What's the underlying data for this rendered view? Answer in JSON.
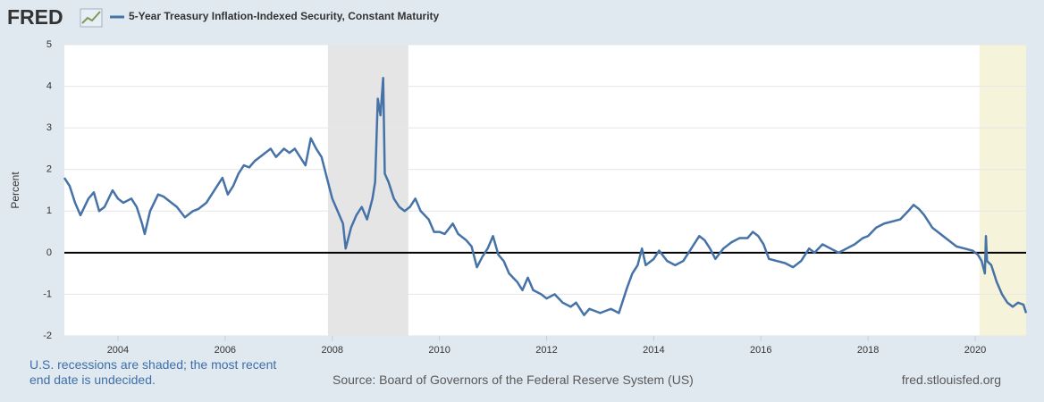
{
  "logo": "FRED",
  "chart_data": {
    "type": "line",
    "y_label": "Percent",
    "x": [
      2003.0,
      2003.1,
      2003.2,
      2003.3,
      2003.45,
      2003.55,
      2003.65,
      2003.75,
      2003.9,
      2004.0,
      2004.1,
      2004.25,
      2004.35,
      2004.45,
      2004.5,
      2004.6,
      2004.75,
      2004.85,
      2005.0,
      2005.1,
      2005.25,
      2005.4,
      2005.5,
      2005.65,
      2005.75,
      2005.85,
      2005.95,
      2006.05,
      2006.15,
      2006.25,
      2006.35,
      2006.45,
      2006.55,
      2006.65,
      2006.75,
      2006.85,
      2006.95,
      2007.1,
      2007.2,
      2007.3,
      2007.4,
      2007.5,
      2007.6,
      2007.7,
      2007.8,
      2007.9,
      2008.0,
      2008.1,
      2008.2,
      2008.25,
      2008.35,
      2008.45,
      2008.55,
      2008.65,
      2008.75,
      2008.8,
      2008.85,
      2008.9,
      2008.95,
      2008.98,
      2009.05,
      2009.15,
      2009.25,
      2009.35,
      2009.45,
      2009.55,
      2009.65,
      2009.8,
      2009.9,
      2010.0,
      2010.1,
      2010.25,
      2010.35,
      2010.5,
      2010.6,
      2010.7,
      2010.8,
      2010.9,
      2011.0,
      2011.1,
      2011.2,
      2011.3,
      2011.45,
      2011.55,
      2011.65,
      2011.75,
      2011.9,
      2012.0,
      2012.15,
      2012.3,
      2012.45,
      2012.55,
      2012.7,
      2012.8,
      2013.0,
      2013.2,
      2013.35,
      2013.5,
      2013.6,
      2013.7,
      2013.78,
      2013.85,
      2014.0,
      2014.1,
      2014.25,
      2014.4,
      2014.55,
      2014.7,
      2014.85,
      2014.95,
      2015.05,
      2015.15,
      2015.3,
      2015.45,
      2015.6,
      2015.75,
      2015.85,
      2015.95,
      2016.05,
      2016.15,
      2016.3,
      2016.45,
      2016.6,
      2016.75,
      2016.9,
      2017.0,
      2017.15,
      2017.3,
      2017.45,
      2017.6,
      2017.75,
      2017.9,
      2018.0,
      2018.15,
      2018.3,
      2018.45,
      2018.6,
      2018.75,
      2018.85,
      2018.95,
      2019.05,
      2019.2,
      2019.35,
      2019.5,
      2019.65,
      2019.8,
      2019.95,
      2020.05,
      2020.12,
      2020.18,
      2020.2,
      2020.22,
      2020.3,
      2020.4,
      2020.5,
      2020.6,
      2020.7,
      2020.8,
      2020.9,
      2020.95
    ],
    "series": [
      {
        "name": "5-Year Treasury Inflation-Indexed Security, Constant Maturity",
        "color": "#4572a7",
        "values": [
          1.8,
          1.6,
          1.2,
          0.9,
          1.3,
          1.45,
          1.0,
          1.1,
          1.5,
          1.3,
          1.2,
          1.3,
          1.1,
          0.7,
          0.45,
          1.0,
          1.4,
          1.35,
          1.2,
          1.1,
          0.85,
          1.0,
          1.05,
          1.2,
          1.4,
          1.6,
          1.8,
          1.4,
          1.6,
          1.9,
          2.1,
          2.05,
          2.2,
          2.3,
          2.4,
          2.5,
          2.3,
          2.5,
          2.4,
          2.5,
          2.3,
          2.1,
          2.75,
          2.5,
          2.3,
          1.8,
          1.3,
          1.0,
          0.7,
          0.1,
          0.6,
          0.9,
          1.1,
          0.8,
          1.3,
          1.7,
          3.7,
          3.3,
          4.2,
          1.9,
          1.7,
          1.3,
          1.1,
          1.0,
          1.1,
          1.3,
          1.0,
          0.8,
          0.5,
          0.5,
          0.45,
          0.7,
          0.45,
          0.3,
          0.15,
          -0.35,
          -0.1,
          0.1,
          0.4,
          -0.05,
          -0.2,
          -0.5,
          -0.7,
          -0.9,
          -0.6,
          -0.9,
          -1.0,
          -1.1,
          -1.0,
          -1.2,
          -1.3,
          -1.2,
          -1.5,
          -1.35,
          -1.45,
          -1.35,
          -1.45,
          -0.85,
          -0.5,
          -0.3,
          0.1,
          -0.3,
          -0.15,
          0.05,
          -0.2,
          -0.3,
          -0.2,
          0.1,
          0.4,
          0.3,
          0.1,
          -0.15,
          0.1,
          0.25,
          0.35,
          0.35,
          0.5,
          0.4,
          0.2,
          -0.15,
          -0.2,
          -0.25,
          -0.35,
          -0.2,
          0.1,
          0.0,
          0.2,
          0.1,
          0.0,
          0.1,
          0.2,
          0.35,
          0.4,
          0.6,
          0.7,
          0.75,
          0.8,
          1.0,
          1.15,
          1.05,
          0.9,
          0.6,
          0.45,
          0.3,
          0.15,
          0.1,
          0.05,
          -0.05,
          -0.2,
          -0.5,
          0.4,
          -0.2,
          -0.3,
          -0.7,
          -1.0,
          -1.2,
          -1.3,
          -1.2,
          -1.25,
          -1.45
        ]
      }
    ],
    "xlim": [
      2003,
      2020.95
    ],
    "ylim": [
      -2,
      5
    ],
    "xticks": [
      2004,
      2006,
      2008,
      2010,
      2012,
      2014,
      2016,
      2018,
      2020
    ],
    "yticks": [
      -2,
      -1,
      0,
      1,
      2,
      3,
      4,
      5
    ],
    "grid": true,
    "reference_line": 0,
    "shaded_periods": [
      {
        "start": 2007.92,
        "end": 2009.42,
        "color": "#e5e5e5"
      },
      {
        "start": 2020.08,
        "end": 2020.95,
        "color": "#f5f3da"
      }
    ]
  },
  "footer": {
    "note": "U.S. recessions are shaded; the most recent end date is undecided.",
    "source": "Source: Board of Governors of the Federal Reserve System (US)",
    "site": "fred.stlouisfed.org"
  }
}
